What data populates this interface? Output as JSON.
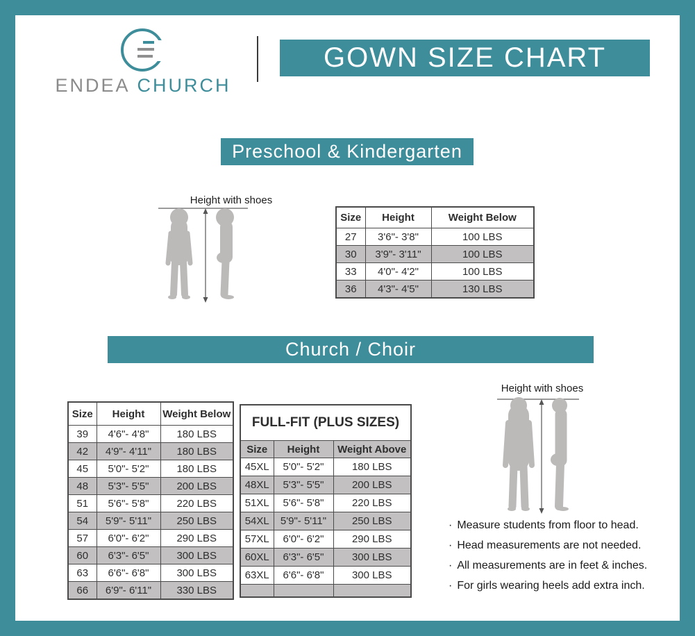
{
  "colors": {
    "teal": "#3E8D9A",
    "row_gray": "#C2C0C0",
    "silhouette": "#BCB9B9",
    "table_border": "#4A4A4A",
    "brand_gray": "#8B8B8B"
  },
  "brand": {
    "word1": "ENDEA",
    "word2": "CHURCH",
    "logo_icon": "circle-g-monogram-icon"
  },
  "header": {
    "title": "GOWN SIZE CHART"
  },
  "preschool": {
    "banner": "Preschool & Kindergarten",
    "figure_label": "Height with shoes",
    "table": {
      "headers": [
        "Size",
        "Height",
        "Weight Below"
      ],
      "rows": [
        [
          "27",
          "3'6\"- 3'8\"",
          "100 LBS"
        ],
        [
          "30",
          "3'9\"- 3'11\"",
          "100 LBS"
        ],
        [
          "33",
          "4'0\"- 4'2\"",
          "100 LBS"
        ],
        [
          "36",
          "4'3\"- 4'5\"",
          "130 LBS"
        ]
      ]
    }
  },
  "church": {
    "banner": "Church / Choir",
    "figure_label": "Height with shoes",
    "regular_table": {
      "headers": [
        "Size",
        "Height",
        "Weight Below"
      ],
      "rows": [
        [
          "39",
          "4'6\"- 4'8\"",
          "180 LBS"
        ],
        [
          "42",
          "4'9\"- 4'11\"",
          "180 LBS"
        ],
        [
          "45",
          "5'0\"- 5'2\"",
          "180 LBS"
        ],
        [
          "48",
          "5'3\"- 5'5\"",
          "200 LBS"
        ],
        [
          "51",
          "5'6\"- 5'8\"",
          "220 LBS"
        ],
        [
          "54",
          "5'9\"- 5'11\"",
          "250 LBS"
        ],
        [
          "57",
          "6'0\"- 6'2\"",
          "290 LBS"
        ],
        [
          "60",
          "6'3\"- 6'5\"",
          "300 LBS"
        ],
        [
          "63",
          "6'6\"- 6'8\"",
          "300 LBS"
        ],
        [
          "66",
          "6'9\"- 6'11\"",
          "330 LBS"
        ]
      ]
    },
    "plus_table": {
      "title": "FULL-FIT (PLUS SIZES)",
      "headers": [
        "Size",
        "Height",
        "Weight Above"
      ],
      "rows": [
        [
          "45XL",
          "5'0\"- 5'2\"",
          "180 LBS"
        ],
        [
          "48XL",
          "5'3\"- 5'5\"",
          "200 LBS"
        ],
        [
          "51XL",
          "5'6\"- 5'8\"",
          "220 LBS"
        ],
        [
          "54XL",
          "5'9\"- 5'11\"",
          "250 LBS"
        ],
        [
          "57XL",
          "6'0\"- 6'2\"",
          "290 LBS"
        ],
        [
          "60XL",
          "6'3\"- 6'5\"",
          "300 LBS"
        ],
        [
          "63XL",
          "6'6\"- 6'8\"",
          "300 LBS"
        ],
        [
          "",
          "",
          ""
        ]
      ]
    },
    "notes": [
      "Measure students from floor to head.",
      "Head measurements are not needed.",
      "All measurements are in feet & inches.",
      "For girls wearing heels add extra inch."
    ]
  }
}
